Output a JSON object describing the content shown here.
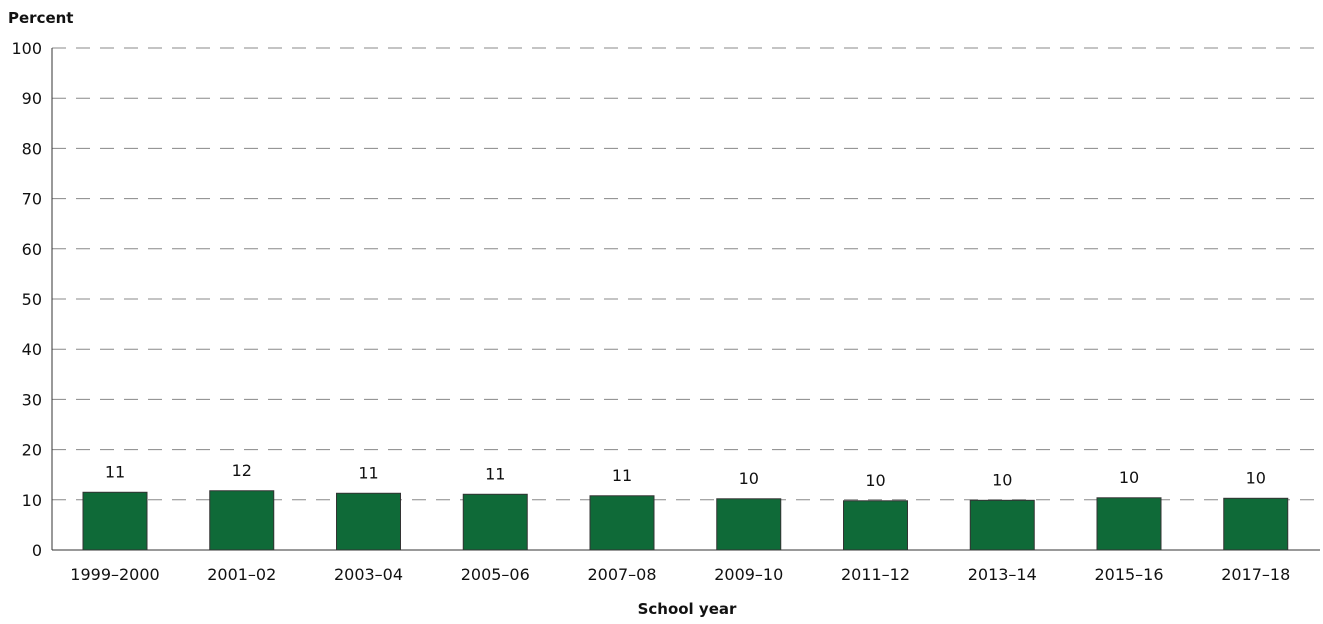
{
  "chart_data": {
    "type": "bar",
    "title": "",
    "xlabel": "School year",
    "ylabel": "Percent",
    "ylim": [
      0,
      100
    ],
    "yticks": [
      0,
      10,
      20,
      30,
      40,
      50,
      60,
      70,
      80,
      90,
      100
    ],
    "grid": true,
    "categories": [
      "1999–2000",
      "2001–02",
      "2003–04",
      "2005–06",
      "2007–08",
      "2009–10",
      "2011–12",
      "2013–14",
      "2015–16",
      "2017–18"
    ],
    "values": [
      11.5,
      11.8,
      11.3,
      11.1,
      10.8,
      10.2,
      9.8,
      9.9,
      10.4,
      10.3
    ],
    "labels": [
      "11",
      "12",
      "11",
      "11",
      "11",
      "10",
      "10",
      "10",
      "10",
      "10"
    ],
    "colors": {
      "bar": "#0f6a38",
      "bar_edge": "#333333",
      "grid": "#888888",
      "axis": "#333333",
      "text": "#111111"
    }
  }
}
